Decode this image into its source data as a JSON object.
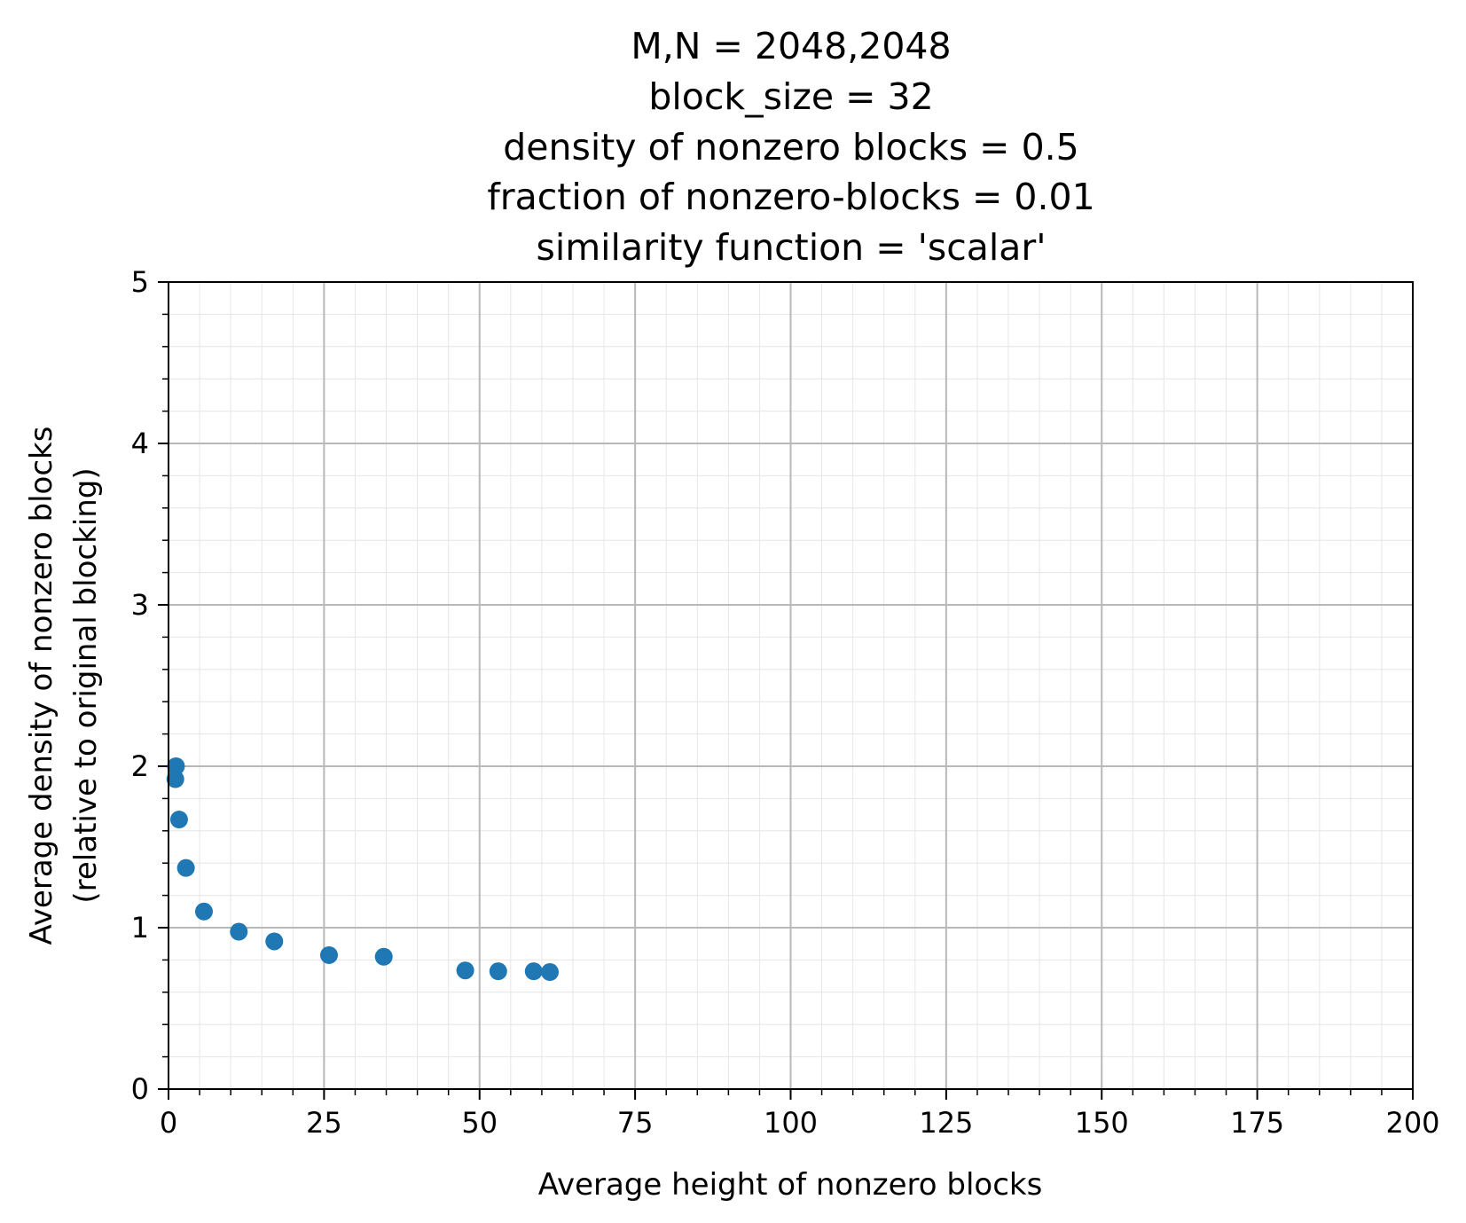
{
  "chart_data": {
    "type": "scatter",
    "title_lines": [
      "M,N = 2048,2048",
      "block_size = 32",
      "density of nonzero blocks = 0.5",
      "fraction of nonzero-blocks = 0.01",
      "similarity function = 'scalar'"
    ],
    "xlabel": "Average height of nonzero blocks",
    "ylabel_lines": [
      "Average density of nonzero blocks",
      "(relative to original blocking)"
    ],
    "xlim": [
      0,
      200
    ],
    "ylim": [
      0,
      5
    ],
    "x_ticks": [
      0,
      25,
      50,
      75,
      100,
      125,
      150,
      175,
      200
    ],
    "y_ticks": [
      0,
      1,
      2,
      3,
      4,
      5
    ],
    "x_minor_step": 5,
    "y_minor_step": 0.2,
    "grid": {
      "major": true,
      "minor": true
    },
    "marker_color": "#1f77b4",
    "points": [
      {
        "x": 1.2,
        "y": 2.0
      },
      {
        "x": 1.1,
        "y": 1.92
      },
      {
        "x": 1.7,
        "y": 1.67
      },
      {
        "x": 2.8,
        "y": 1.37
      },
      {
        "x": 5.7,
        "y": 1.1
      },
      {
        "x": 11.3,
        "y": 0.975
      },
      {
        "x": 17.0,
        "y": 0.915
      },
      {
        "x": 25.8,
        "y": 0.83
      },
      {
        "x": 34.6,
        "y": 0.82
      },
      {
        "x": 47.7,
        "y": 0.735
      },
      {
        "x": 53.0,
        "y": 0.73
      },
      {
        "x": 58.7,
        "y": 0.73
      },
      {
        "x": 61.3,
        "y": 0.725
      }
    ]
  }
}
